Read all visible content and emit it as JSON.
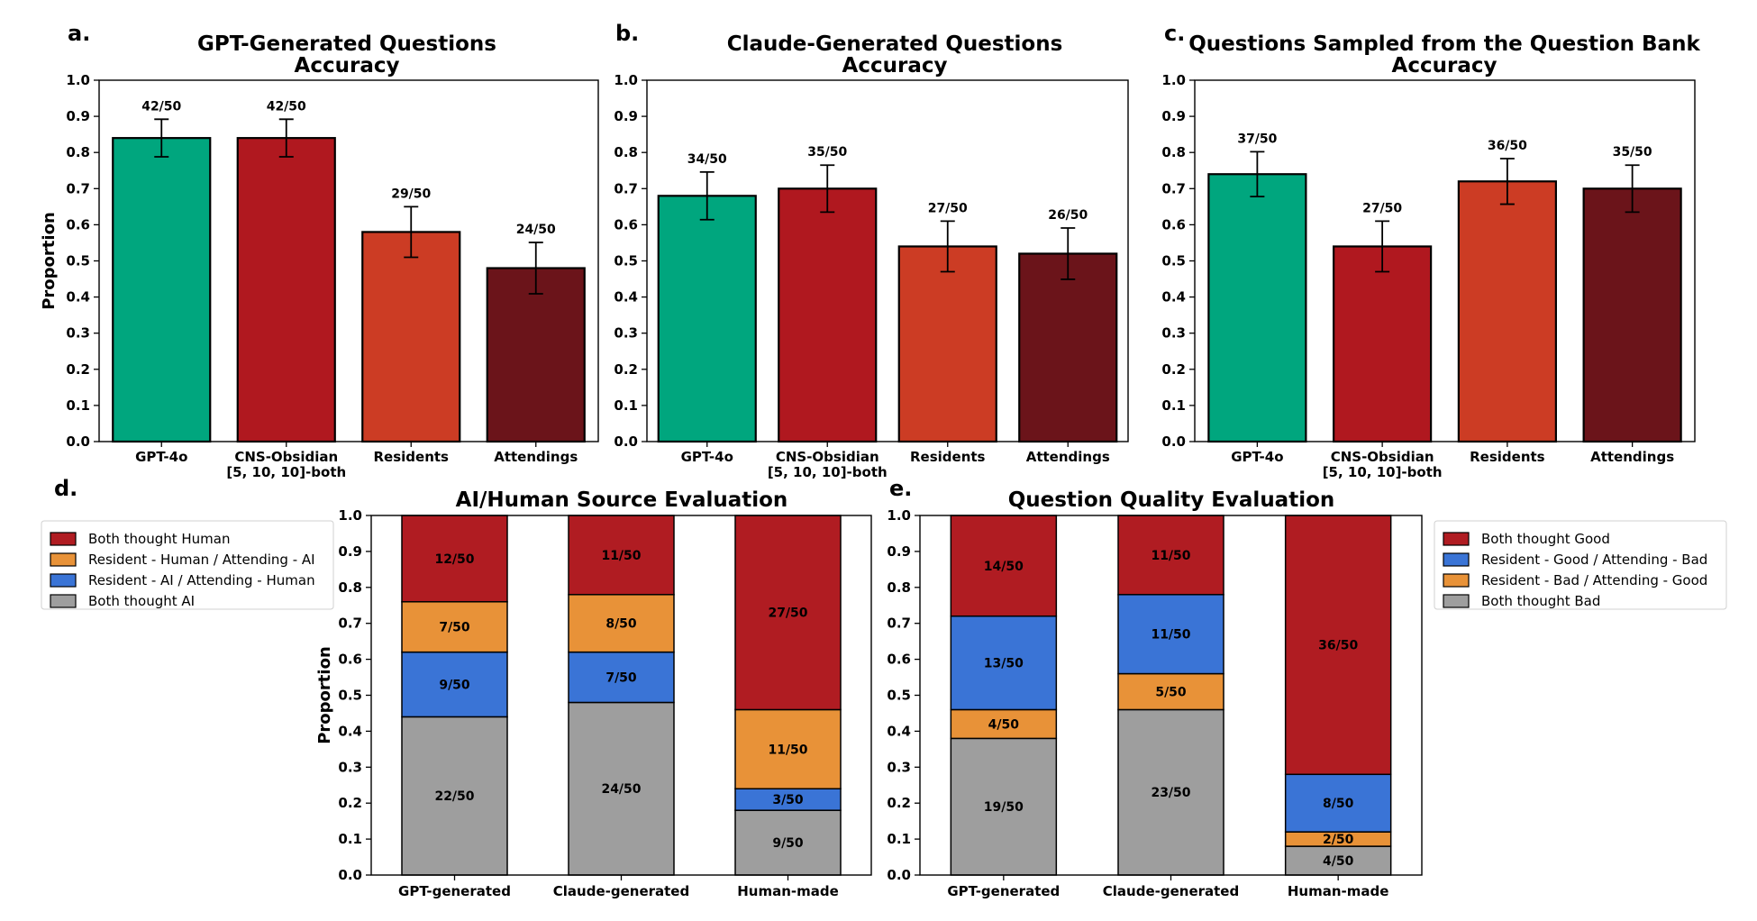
{
  "colors": {
    "gpt4o": "#00a67e",
    "cns": "#b0181f",
    "residents": "#cc3c24",
    "attendings": "#6b141a",
    "errbar": "#000000",
    "stack_red": "#b01c22",
    "stack_orange": "#e89238",
    "stack_blue": "#3a74d6",
    "stack_gray": "#9e9e9e"
  },
  "chart_data": [
    {
      "panel": "a.",
      "type": "bar",
      "title_lines": [
        "GPT-Generated Questions",
        "Accuracy"
      ],
      "ylabel": "Proportion",
      "ylim": [
        0,
        1.0
      ],
      "yticks": [
        "0.0",
        "0.1",
        "0.2",
        "0.3",
        "0.4",
        "0.5",
        "0.6",
        "0.7",
        "0.8",
        "0.9",
        "1.0"
      ],
      "categories": [
        [
          "GPT-4o"
        ],
        [
          "CNS-Obsidian",
          "[5, 10, 10]-both"
        ],
        [
          "Residents"
        ],
        [
          "Attendings"
        ]
      ],
      "values": [
        0.84,
        0.84,
        0.58,
        0.48
      ],
      "errors": [
        0.052,
        0.052,
        0.07,
        0.071
      ],
      "labels": [
        "42/50",
        "42/50",
        "29/50",
        "24/50"
      ],
      "colors": [
        "#00a67e",
        "#b0181f",
        "#cc3c24",
        "#6b141a"
      ]
    },
    {
      "panel": "b.",
      "type": "bar",
      "title_lines": [
        "Claude-Generated Questions",
        "Accuracy"
      ],
      "ylabel": "",
      "ylim": [
        0,
        1.0
      ],
      "yticks": [
        "0.0",
        "0.1",
        "0.2",
        "0.3",
        "0.4",
        "0.5",
        "0.6",
        "0.7",
        "0.8",
        "0.9",
        "1.0"
      ],
      "categories": [
        [
          "GPT-4o"
        ],
        [
          "CNS-Obsidian",
          "[5, 10, 10]-both"
        ],
        [
          "Residents"
        ],
        [
          "Attendings"
        ]
      ],
      "values": [
        0.68,
        0.7,
        0.54,
        0.52
      ],
      "errors": [
        0.066,
        0.065,
        0.07,
        0.071
      ],
      "labels": [
        "34/50",
        "35/50",
        "27/50",
        "26/50"
      ],
      "colors": [
        "#00a67e",
        "#b0181f",
        "#cc3c24",
        "#6b141a"
      ]
    },
    {
      "panel": "c.",
      "type": "bar",
      "title_lines": [
        "Questions Sampled from the Question Bank",
        "Accuracy"
      ],
      "ylabel": "",
      "ylim": [
        0,
        1.0
      ],
      "yticks": [
        "0.0",
        "0.1",
        "0.2",
        "0.3",
        "0.4",
        "0.5",
        "0.6",
        "0.7",
        "0.8",
        "0.9",
        "1.0"
      ],
      "categories": [
        [
          "GPT-4o"
        ],
        [
          "CNS-Obsidian",
          "[5, 10, 10]-both"
        ],
        [
          "Residents"
        ],
        [
          "Attendings"
        ]
      ],
      "values": [
        0.74,
        0.54,
        0.72,
        0.7
      ],
      "errors": [
        0.062,
        0.07,
        0.063,
        0.065
      ],
      "labels": [
        "37/50",
        "27/50",
        "36/50",
        "35/50"
      ],
      "colors": [
        "#00a67e",
        "#b0181f",
        "#cc3c24",
        "#6b141a"
      ]
    },
    {
      "panel": "d.",
      "type": "stacked_bar",
      "title_lines": [
        "AI/Human Source Evaluation"
      ],
      "ylabel": "Proportion",
      "ylim": [
        0,
        1.0
      ],
      "yticks": [
        "0.0",
        "0.1",
        "0.2",
        "0.3",
        "0.4",
        "0.5",
        "0.6",
        "0.7",
        "0.8",
        "0.9",
        "1.0"
      ],
      "categories": [
        "GPT-generated",
        "Claude-generated",
        "Human-made"
      ],
      "series": [
        {
          "name": "Both thought AI",
          "color": "#9e9e9e",
          "counts": [
            22,
            24,
            9
          ],
          "labels": [
            "22/50",
            "24/50",
            "9/50"
          ]
        },
        {
          "name": "Resident - AI / Attending - Human",
          "color": "#3a74d6",
          "counts": [
            9,
            7,
            3
          ],
          "labels": [
            "9/50",
            "7/50",
            "3/50"
          ]
        },
        {
          "name": "Resident - Human / Attending - AI",
          "color": "#e89238",
          "counts": [
            7,
            8,
            11
          ],
          "labels": [
            "7/50",
            "8/50",
            "11/50"
          ]
        },
        {
          "name": "Both thought Human",
          "color": "#b01c22",
          "counts": [
            12,
            11,
            27
          ],
          "labels": [
            "12/50",
            "11/50",
            "27/50"
          ]
        }
      ],
      "legend_order": [
        "Both thought Human",
        "Resident - Human / Attending - AI",
        "Resident - AI / Attending - Human",
        "Both thought AI"
      ],
      "legend_colors": [
        "#b01c22",
        "#e89238",
        "#3a74d6",
        "#9e9e9e"
      ],
      "legend_placement": "left"
    },
    {
      "panel": "e.",
      "type": "stacked_bar",
      "title_lines": [
        "Question Quality Evaluation"
      ],
      "ylabel": "",
      "ylim": [
        0,
        1.0
      ],
      "yticks": [
        "0.0",
        "0.1",
        "0.2",
        "0.3",
        "0.4",
        "0.5",
        "0.6",
        "0.7",
        "0.8",
        "0.9",
        "1.0"
      ],
      "categories": [
        "GPT-generated",
        "Claude-generated",
        "Human-made"
      ],
      "series": [
        {
          "name": "Both thought Bad",
          "color": "#9e9e9e",
          "counts": [
            19,
            23,
            4
          ],
          "labels": [
            "19/50",
            "23/50",
            "4/50"
          ]
        },
        {
          "name": "Resident - Bad / Attending - Good",
          "color": "#e89238",
          "counts": [
            4,
            5,
            2
          ],
          "labels": [
            "4/50",
            "5/50",
            "2/50"
          ]
        },
        {
          "name": "Resident - Good / Attending - Bad",
          "color": "#3a74d6",
          "counts": [
            13,
            11,
            8
          ],
          "labels": [
            "13/50",
            "11/50",
            "8/50"
          ]
        },
        {
          "name": "Both thought Good",
          "color": "#b01c22",
          "counts": [
            14,
            11,
            36
          ],
          "labels": [
            "14/50",
            "11/50",
            "36/50"
          ]
        }
      ],
      "legend_order": [
        "Both thought Good",
        "Resident - Good / Attending - Bad",
        "Resident - Bad / Attending - Good",
        "Both thought Bad"
      ],
      "legend_colors": [
        "#b01c22",
        "#3a74d6",
        "#e89238",
        "#9e9e9e"
      ],
      "legend_placement": "right"
    }
  ]
}
